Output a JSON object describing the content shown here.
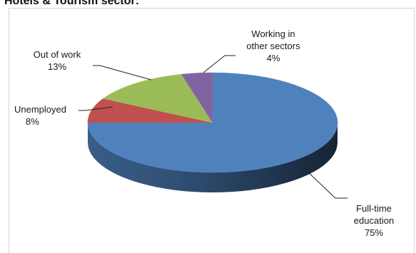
{
  "page_title": "Hotels & Tourism sector:",
  "chart_data": {
    "type": "pie",
    "three_d": true,
    "start_angle_deg": 0,
    "direction": "clockwise",
    "slices": [
      {
        "label_lines": [
          "Full-time",
          "education"
        ],
        "value": 75,
        "value_label": "75%",
        "color": "#4F81BD"
      },
      {
        "label_lines": [
          "Unemployed"
        ],
        "value": 8,
        "value_label": "8%",
        "color": "#C0504D"
      },
      {
        "label_lines": [
          "Out of work"
        ],
        "value": 13,
        "value_label": "13%",
        "color": "#9BBB59"
      },
      {
        "label_lines": [
          "Working in",
          "other sectors"
        ],
        "value": 4,
        "value_label": "4%",
        "color": "#8064A2"
      }
    ],
    "legend": "none"
  }
}
